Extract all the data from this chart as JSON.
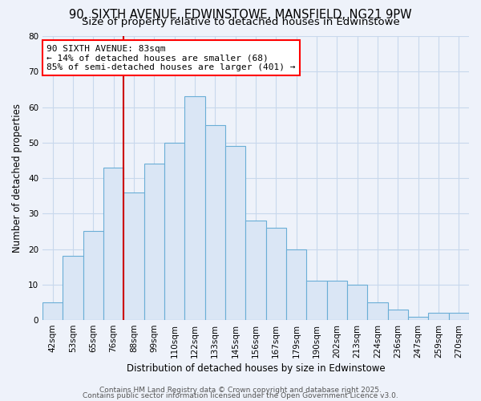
{
  "title1": "90, SIXTH AVENUE, EDWINSTOWE, MANSFIELD, NG21 9PW",
  "title2": "Size of property relative to detached houses in Edwinstowe",
  "xlabel": "Distribution of detached houses by size in Edwinstowe",
  "ylabel": "Number of detached properties",
  "bins": [
    "42sqm",
    "53sqm",
    "65sqm",
    "76sqm",
    "88sqm",
    "99sqm",
    "110sqm",
    "122sqm",
    "133sqm",
    "145sqm",
    "156sqm",
    "167sqm",
    "179sqm",
    "190sqm",
    "202sqm",
    "213sqm",
    "224sqm",
    "236sqm",
    "247sqm",
    "259sqm",
    "270sqm"
  ],
  "values": [
    5,
    18,
    25,
    43,
    36,
    44,
    50,
    63,
    55,
    49,
    28,
    26,
    20,
    11,
    11,
    10,
    5,
    3,
    1,
    2,
    2
  ],
  "bar_color": "#dae6f5",
  "bar_edge_color": "#6aaed6",
  "vline_color": "#cc0000",
  "vline_x_index": 3.5,
  "annotation_text": "90 SIXTH AVENUE: 83sqm\n← 14% of detached houses are smaller (68)\n85% of semi-detached houses are larger (401) →",
  "annotation_box_facecolor": "white",
  "annotation_box_edgecolor": "red",
  "ylim": [
    0,
    80
  ],
  "yticks": [
    0,
    10,
    20,
    30,
    40,
    50,
    60,
    70,
    80
  ],
  "footer1": "Contains HM Land Registry data © Crown copyright and database right 2025.",
  "footer2": "Contains public sector information licensed under the Open Government Licence v3.0.",
  "bg_color": "#eef2fa",
  "plot_bg_color": "#eef2fa",
  "grid_color": "#c8d8ec",
  "title1_fontsize": 10.5,
  "title2_fontsize": 9.5,
  "xlabel_fontsize": 8.5,
  "ylabel_fontsize": 8.5,
  "tick_fontsize": 7.5,
  "annotation_fontsize": 8,
  "footer_fontsize": 6.5
}
